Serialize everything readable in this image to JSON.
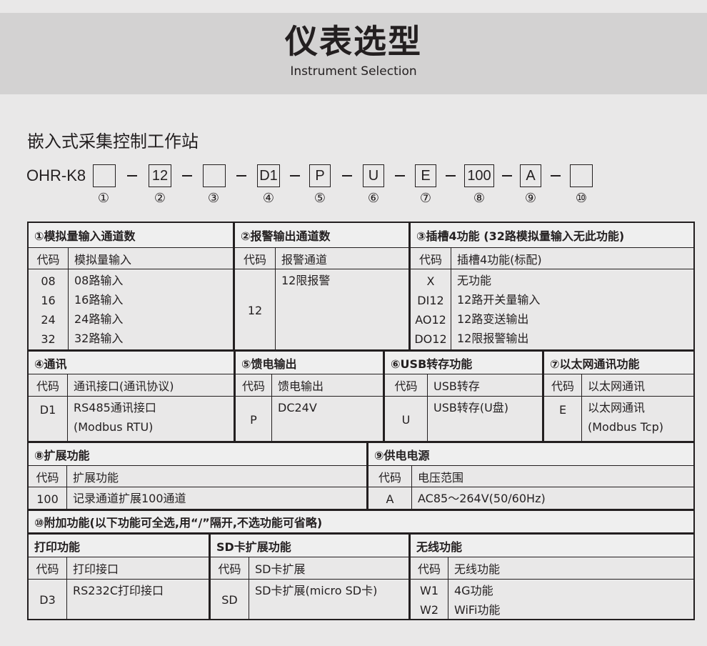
{
  "header": {
    "title": "仪表选型",
    "subtitle": "Instrument Selection"
  },
  "product": "嵌入式采集控制工作站",
  "model": {
    "prefix": "OHR-K8",
    "slots": [
      "",
      "12",
      "",
      "D1",
      "P",
      "U",
      "E",
      "100",
      "A",
      ""
    ],
    "numbers": [
      "①",
      "②",
      "③",
      "④",
      "⑤",
      "⑥",
      "⑦",
      "⑧",
      "⑨",
      "⑩"
    ]
  },
  "section10_title": "⑩附加功能(以下功能可全选,用“/”隔开,不选功能可省略)",
  "sections": [
    {
      "title": "①模拟量输入通道数",
      "code_header": "代码",
      "desc_header": "模拟量输入",
      "rows": [
        {
          "code": "08",
          "desc": "08路输入"
        },
        {
          "code": "16",
          "desc": "16路输入"
        },
        {
          "code": "24",
          "desc": "24路输入"
        },
        {
          "code": "32",
          "desc": "32路输入"
        }
      ]
    },
    {
      "title": "②报警输出通道数",
      "code_header": "代码",
      "desc_header": "报警通道",
      "rows": [
        {
          "code": "12",
          "desc": "12限报警"
        }
      ]
    },
    {
      "title": "③插槽4功能 (32路模拟量输入无此功能)",
      "code_header": "代码",
      "desc_header": "插槽4功能(标配)",
      "rows": [
        {
          "code": "X",
          "desc": "无功能"
        },
        {
          "code": "DI12",
          "desc": "12路开关量输入"
        },
        {
          "code": "AO12",
          "desc": "12路变送输出"
        },
        {
          "code": "DO12",
          "desc": "12限报警输出"
        }
      ]
    },
    {
      "title": "④通讯",
      "code_header": "代码",
      "desc_header": "通讯接口(通讯协议)",
      "rows": [
        {
          "code": "D1",
          "desc": "RS485通讯接口"
        },
        {
          "code": "",
          "desc": "(Modbus RTU)"
        }
      ]
    },
    {
      "title": "⑤馈电输出",
      "code_header": "代码",
      "desc_header": "馈电输出",
      "rows": [
        {
          "code": "P",
          "desc": "DC24V"
        }
      ]
    },
    {
      "title": "⑥USB转存功能",
      "code_header": "代码",
      "desc_header": "USB转存",
      "rows": [
        {
          "code": "U",
          "desc": "USB转存(U盘)"
        }
      ]
    },
    {
      "title": "⑦以太网通讯功能",
      "code_header": "代码",
      "desc_header": "以太网通讯",
      "rows": [
        {
          "code": "E",
          "desc": "以太网通讯"
        },
        {
          "code": "",
          "desc": "(Modbus Tcp)"
        }
      ]
    },
    {
      "title": "⑧扩展功能",
      "code_header": "代码",
      "desc_header": "扩展功能",
      "rows": [
        {
          "code": "100",
          "desc": "记录通道扩展100通道"
        }
      ]
    },
    {
      "title": "⑨供电电源",
      "code_header": "代码",
      "desc_header": "电压范围",
      "rows": [
        {
          "code": "A",
          "desc": "AC85～264V(50/60Hz)"
        }
      ]
    },
    {
      "title": "打印功能",
      "code_header": "代码",
      "desc_header": "打印接口",
      "rows": [
        {
          "code": "D3",
          "desc": "RS232C打印接口"
        }
      ]
    },
    {
      "title": "SD卡扩展功能",
      "code_header": "代码",
      "desc_header": "SD卡扩展",
      "rows": [
        {
          "code": "SD",
          "desc": "SD卡扩展(micro SD卡)"
        }
      ]
    },
    {
      "title": "无线功能",
      "code_header": "代码",
      "desc_header": "无线功能",
      "rows": [
        {
          "code": "W1",
          "desc": "4G功能"
        },
        {
          "code": "W2",
          "desc": "WiFi功能"
        }
      ]
    }
  ]
}
